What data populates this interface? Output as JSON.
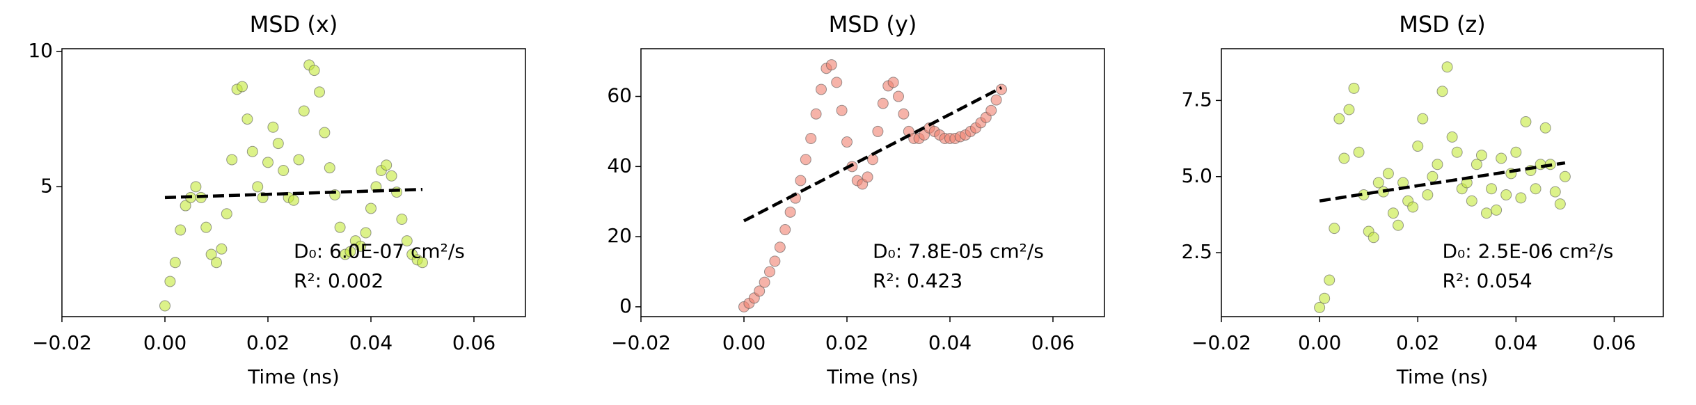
{
  "chart_data": [
    {
      "type": "scatter",
      "title": "MSD (x)",
      "xlabel": "Time (ns)",
      "xlim": [
        -0.02,
        0.07
      ],
      "xticks": [
        {
          "value": -0.02,
          "label": "−0.02"
        },
        {
          "value": 0,
          "label": "0.00"
        },
        {
          "value": 0.02,
          "label": "0.02"
        },
        {
          "value": 0.04,
          "label": "0.04"
        },
        {
          "value": 0.06,
          "label": "0.06"
        }
      ],
      "ylim": [
        0.2,
        10.1
      ],
      "yticks": [
        5,
        10
      ],
      "series": [
        {
          "color": "#c5ea3a",
          "x": [
            0,
            0.001,
            0.002,
            0.003,
            0.004,
            0.005,
            0.006,
            0.007,
            0.008,
            0.009,
            0.01,
            0.011,
            0.012,
            0.013,
            0.014,
            0.015,
            0.016,
            0.017,
            0.018,
            0.019,
            0.02,
            0.021,
            0.022,
            0.023,
            0.024,
            0.025,
            0.026,
            0.027,
            0.028,
            0.029,
            0.03,
            0.031,
            0.032,
            0.033,
            0.034,
            0.035,
            0.036,
            0.037,
            0.038,
            0.039,
            0.04,
            0.041,
            0.042,
            0.043,
            0.044,
            0.045,
            0.046,
            0.047,
            0.048,
            0.049,
            0.05
          ],
          "values": [
            0.6,
            1.5,
            2.2,
            3.4,
            4.3,
            4.6,
            5.0,
            4.6,
            3.5,
            2.5,
            2.2,
            2.7,
            4.0,
            6.0,
            8.6,
            8.7,
            7.5,
            6.3,
            5.0,
            4.6,
            5.9,
            7.2,
            6.6,
            5.6,
            4.6,
            4.5,
            6.0,
            7.8,
            9.5,
            9.3,
            8.5,
            7.0,
            5.7,
            4.7,
            3.5,
            2.5,
            2.6,
            3.0,
            2.8,
            3.3,
            4.2,
            5.0,
            5.6,
            5.8,
            5.4,
            4.8,
            3.8,
            3.0,
            2.5,
            2.3,
            2.2
          ]
        }
      ],
      "fit": {
        "x": [
          0,
          0.05
        ],
        "y": [
          4.6,
          4.9
        ]
      },
      "annotations": [
        "D₀: 6.0E-07 cm²/s",
        "R²: 0.002"
      ]
    },
    {
      "type": "scatter",
      "title": "MSD (y)",
      "xlabel": "Time (ns)",
      "xlim": [
        -0.02,
        0.07
      ],
      "xticks": [
        {
          "value": -0.02,
          "label": "−0.02"
        },
        {
          "value": 0,
          "label": "0.00"
        },
        {
          "value": 0.02,
          "label": "0.02"
        },
        {
          "value": 0.04,
          "label": "0.04"
        },
        {
          "value": 0.06,
          "label": "0.06"
        }
      ],
      "ylim": [
        -2.8,
        73.6
      ],
      "yticks": [
        0,
        20,
        40,
        60
      ],
      "series": [
        {
          "color": "#f08070",
          "x": [
            0,
            0.001,
            0.002,
            0.003,
            0.004,
            0.005,
            0.006,
            0.007,
            0.008,
            0.009,
            0.01,
            0.011,
            0.012,
            0.013,
            0.014,
            0.015,
            0.016,
            0.017,
            0.018,
            0.019,
            0.02,
            0.021,
            0.022,
            0.023,
            0.024,
            0.025,
            0.026,
            0.027,
            0.028,
            0.029,
            0.03,
            0.031,
            0.032,
            0.033,
            0.034,
            0.035,
            0.036,
            0.037,
            0.038,
            0.039,
            0.04,
            0.041,
            0.042,
            0.043,
            0.044,
            0.045,
            0.046,
            0.047,
            0.048,
            0.049,
            0.05
          ],
          "values": [
            0,
            1,
            2.5,
            4.5,
            7,
            10,
            13,
            17,
            22,
            27,
            31,
            36,
            42,
            48,
            55,
            62,
            68,
            69,
            64,
            56,
            47,
            40,
            36,
            35,
            37,
            42,
            50,
            58,
            63,
            64,
            60,
            55,
            50,
            48,
            48,
            49,
            51,
            50,
            49,
            48,
            48,
            48,
            48.5,
            49,
            50,
            51,
            52.5,
            54,
            56,
            59,
            62
          ]
        }
      ],
      "fit": {
        "x": [
          0,
          0.05
        ],
        "y": [
          24.5,
          62.5
        ]
      },
      "annotations": [
        "D₀: 7.8E-05 cm²/s",
        "R²: 0.423"
      ]
    },
    {
      "type": "scatter",
      "title": "MSD (z)",
      "xlabel": "Time (ns)",
      "xlim": [
        -0.02,
        0.07
      ],
      "xticks": [
        {
          "value": -0.02,
          "label": "−0.02"
        },
        {
          "value": 0,
          "label": "0.00"
        },
        {
          "value": 0.02,
          "label": "0.02"
        },
        {
          "value": 0.04,
          "label": "0.04"
        },
        {
          "value": 0.06,
          "label": "0.06"
        }
      ],
      "ylim": [
        0.4,
        9.2
      ],
      "yticks": [
        2.5,
        {
          "value": 5,
          "label": "5.0"
        },
        7.5
      ],
      "series": [
        {
          "color": "#c5ea3a",
          "x": [
            0,
            0.001,
            0.002,
            0.003,
            0.004,
            0.005,
            0.006,
            0.007,
            0.008,
            0.009,
            0.01,
            0.011,
            0.012,
            0.013,
            0.014,
            0.015,
            0.016,
            0.017,
            0.018,
            0.019,
            0.02,
            0.021,
            0.022,
            0.023,
            0.024,
            0.025,
            0.026,
            0.027,
            0.028,
            0.029,
            0.03,
            0.031,
            0.032,
            0.033,
            0.034,
            0.035,
            0.036,
            0.037,
            0.038,
            0.039,
            0.04,
            0.041,
            0.042,
            0.043,
            0.044,
            0.045,
            0.046,
            0.047,
            0.048,
            0.049,
            0.05
          ],
          "values": [
            0.7,
            1.0,
            1.6,
            3.3,
            6.9,
            5.6,
            7.2,
            7.9,
            5.8,
            4.4,
            3.2,
            3.0,
            4.8,
            4.5,
            5.1,
            3.8,
            3.4,
            4.8,
            4.2,
            4.0,
            6.0,
            6.9,
            4.4,
            5.0,
            5.4,
            7.8,
            8.6,
            6.3,
            5.8,
            4.6,
            4.8,
            4.2,
            5.4,
            5.7,
            3.8,
            4.6,
            3.9,
            5.6,
            4.4,
            5.1,
            5.8,
            4.3,
            6.8,
            5.2,
            4.6,
            5.4,
            6.6,
            5.4,
            4.5,
            4.1,
            5.0
          ]
        }
      ],
      "fit": {
        "x": [
          0,
          0.05
        ],
        "y": [
          4.2,
          5.45
        ]
      },
      "annotations": [
        "D₀: 2.5E-06 cm²/s",
        "R²: 0.054"
      ]
    }
  ]
}
